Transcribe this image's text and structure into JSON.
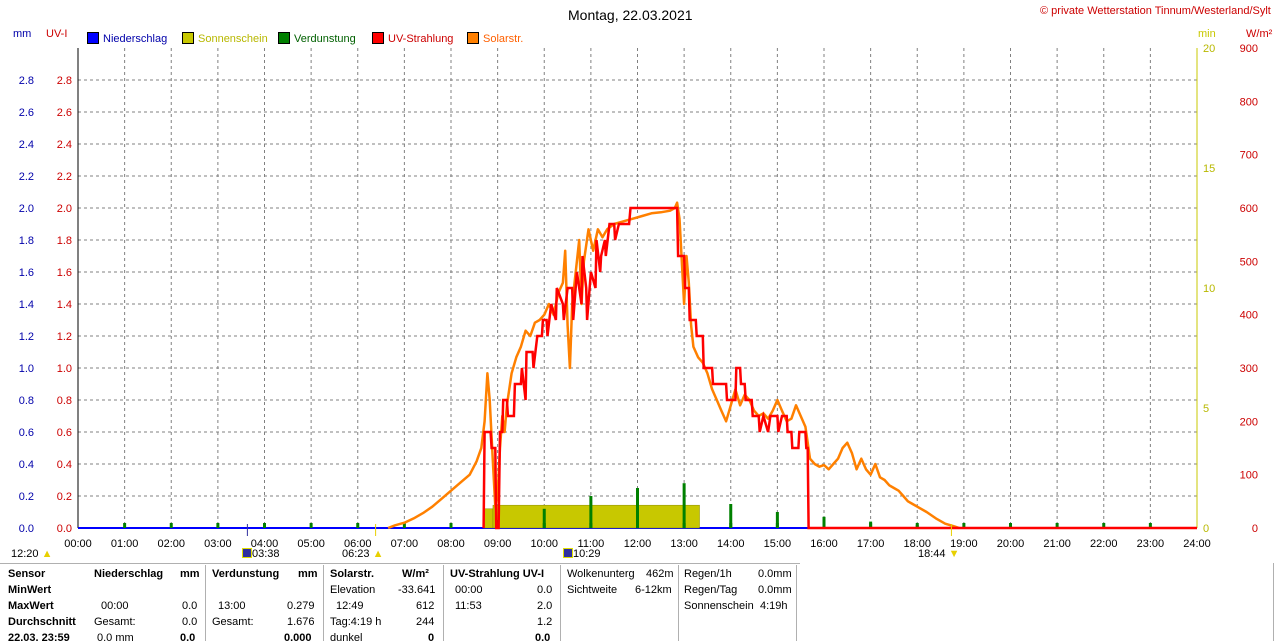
{
  "header": {
    "title": "Montag, 22.03.2021",
    "copyright": "© private Wetterstation Tinnum/Westerland/Sylt"
  },
  "units": {
    "left_mm": "mm",
    "left_uvi": "UV-I",
    "right_min": "min",
    "right_wm2": "W/m²"
  },
  "legend": [
    {
      "label": "Niederschlag",
      "color": "#0000ff"
    },
    {
      "label": "Sonnenschein",
      "color": "#c8c800"
    },
    {
      "label": "Verdunstung",
      "color": "#008000"
    },
    {
      "label": "UV-Strahlung",
      "color": "#ff0000"
    },
    {
      "label": "Solarstr.",
      "color": "#ff8000"
    }
  ],
  "colors": {
    "rain": "#0000ff",
    "sunshine": "#c8c800",
    "evaporation": "#008000",
    "uv": "#ff0000",
    "solar": "#ff8000",
    "grid": "#808080"
  },
  "markers": {
    "moonrise_left": "12:20",
    "moonset": "03:38",
    "sunrise": "06:23",
    "moon2": "10:29",
    "sunset": "18:44"
  },
  "chart_data": {
    "type": "line",
    "title": "Montag, 22.03.2021",
    "x_ticks": [
      "00:00",
      "01:00",
      "02:00",
      "03:00",
      "04:00",
      "05:00",
      "06:00",
      "07:00",
      "08:00",
      "09:00",
      "10:00",
      "11:00",
      "12:00",
      "13:00",
      "14:00",
      "15:00",
      "16:00",
      "17:00",
      "18:00",
      "19:00",
      "20:00",
      "21:00",
      "22:00",
      "23:00",
      "24:00"
    ],
    "xlim_hours": [
      0,
      24
    ],
    "y_left_mm_ticks": [
      "0.0",
      "0.2",
      "0.4",
      "0.6",
      "0.8",
      "1.0",
      "1.2",
      "1.4",
      "1.6",
      "1.8",
      "2.0",
      "2.2",
      "2.4",
      "2.6",
      "2.8"
    ],
    "y_left_uvi_ticks": [
      "0.0",
      "0.2",
      "0.4",
      "0.6",
      "0.8",
      "1.0",
      "1.2",
      "1.4",
      "1.6",
      "1.8",
      "2.0",
      "2.2",
      "2.4",
      "2.6",
      "2.8"
    ],
    "y_left_range": [
      0,
      3.0
    ],
    "y_right_min_ticks": [
      "0",
      "5",
      "10",
      "15",
      "20"
    ],
    "y_right_min_range": [
      0,
      20
    ],
    "y_right_wm2_ticks": [
      "0",
      "100",
      "200",
      "300",
      "400",
      "500",
      "600",
      "700",
      "800",
      "900"
    ],
    "y_right_wm2_range": [
      0,
      900
    ],
    "grid": true,
    "series": [
      {
        "name": "UV-Strahlung",
        "axis": "uvi",
        "points": [
          [
            8.7,
            0
          ],
          [
            8.72,
            0.6
          ],
          [
            8.85,
            0.6
          ],
          [
            8.87,
            0.5
          ],
          [
            8.95,
            0.5
          ],
          [
            8.97,
            0
          ],
          [
            9.02,
            0
          ],
          [
            9.05,
            0.6
          ],
          [
            9.1,
            0.6
          ],
          [
            9.12,
            0.8
          ],
          [
            9.2,
            0.8
          ],
          [
            9.22,
            0.7
          ],
          [
            9.35,
            0.7
          ],
          [
            9.37,
            0.9
          ],
          [
            9.5,
            0.9
          ],
          [
            9.52,
            1.0
          ],
          [
            9.6,
            0.8
          ],
          [
            9.62,
            1.1
          ],
          [
            9.75,
            1.1
          ],
          [
            9.77,
            1.0
          ],
          [
            9.85,
            1.2
          ],
          [
            9.95,
            1.2
          ],
          [
            9.97,
            1.3
          ],
          [
            10.05,
            1.3
          ],
          [
            10.07,
            1.2
          ],
          [
            10.15,
            1.4
          ],
          [
            10.25,
            1.3
          ],
          [
            10.27,
            1.5
          ],
          [
            10.4,
            1.4
          ],
          [
            10.42,
            1.3
          ],
          [
            10.5,
            1.5
          ],
          [
            10.6,
            1.5
          ],
          [
            10.62,
            1.3
          ],
          [
            10.7,
            1.6
          ],
          [
            10.8,
            1.4
          ],
          [
            10.82,
            1.7
          ],
          [
            10.9,
            1.5
          ],
          [
            10.92,
            1.3
          ],
          [
            11.0,
            1.6
          ],
          [
            11.1,
            1.5
          ],
          [
            11.12,
            1.8
          ],
          [
            11.2,
            1.6
          ],
          [
            11.22,
            1.7
          ],
          [
            11.3,
            1.8
          ],
          [
            11.32,
            1.7
          ],
          [
            11.4,
            1.9
          ],
          [
            11.5,
            1.9
          ],
          [
            11.52,
            1.8
          ],
          [
            11.6,
            1.9
          ],
          [
            11.8,
            1.9
          ],
          [
            11.82,
            1.9
          ],
          [
            11.85,
            2.0
          ],
          [
            12.85,
            2.0
          ],
          [
            12.87,
            1.7
          ],
          [
            13.0,
            1.7
          ],
          [
            13.02,
            1.5
          ],
          [
            13.1,
            1.5
          ],
          [
            13.12,
            1.3
          ],
          [
            13.25,
            1.3
          ],
          [
            13.27,
            1.2
          ],
          [
            13.4,
            1.2
          ],
          [
            13.42,
            1.0
          ],
          [
            13.6,
            1.0
          ],
          [
            13.62,
            0.9
          ],
          [
            13.9,
            0.9
          ],
          [
            13.92,
            0.8
          ],
          [
            14.1,
            0.8
          ],
          [
            14.12,
            1.0
          ],
          [
            14.2,
            1.0
          ],
          [
            14.22,
            0.9
          ],
          [
            14.3,
            0.9
          ],
          [
            14.32,
            0.8
          ],
          [
            14.45,
            0.8
          ],
          [
            14.47,
            0.7
          ],
          [
            14.6,
            0.7
          ],
          [
            14.62,
            0.6
          ],
          [
            14.7,
            0.7
          ],
          [
            14.8,
            0.6
          ],
          [
            14.85,
            0.7
          ],
          [
            15.0,
            0.7
          ],
          [
            15.02,
            0.6
          ],
          [
            15.1,
            0.7
          ],
          [
            15.2,
            0.7
          ],
          [
            15.22,
            0.6
          ],
          [
            15.3,
            0.6
          ],
          [
            15.32,
            0.5
          ],
          [
            15.45,
            0.5
          ],
          [
            15.47,
            0.6
          ],
          [
            15.6,
            0.6
          ],
          [
            15.62,
            0.5
          ],
          [
            15.65,
            0.5
          ],
          [
            15.67,
            0
          ],
          [
            24,
            0
          ]
        ]
      },
      {
        "name": "Solarstr.",
        "axis": "wm2",
        "points": [
          [
            6.65,
            0
          ],
          [
            6.8,
            5
          ],
          [
            7.0,
            10
          ],
          [
            7.2,
            18
          ],
          [
            7.4,
            28
          ],
          [
            7.6,
            40
          ],
          [
            7.8,
            55
          ],
          [
            8.0,
            70
          ],
          [
            8.2,
            85
          ],
          [
            8.4,
            100
          ],
          [
            8.55,
            125
          ],
          [
            8.65,
            150
          ],
          [
            8.72,
            200
          ],
          [
            8.78,
            290
          ],
          [
            8.83,
            240
          ],
          [
            8.9,
            120
          ],
          [
            8.95,
            40
          ],
          [
            9.0,
            60
          ],
          [
            9.05,
            150
          ],
          [
            9.1,
            210
          ],
          [
            9.15,
            180
          ],
          [
            9.2,
            230
          ],
          [
            9.3,
            290
          ],
          [
            9.4,
            320
          ],
          [
            9.5,
            340
          ],
          [
            9.6,
            370
          ],
          [
            9.7,
            360
          ],
          [
            9.8,
            385
          ],
          [
            9.9,
            390
          ],
          [
            10.0,
            400
          ],
          [
            10.1,
            420
          ],
          [
            10.2,
            400
          ],
          [
            10.3,
            440
          ],
          [
            10.4,
            460
          ],
          [
            10.45,
            520
          ],
          [
            10.5,
            380
          ],
          [
            10.55,
            300
          ],
          [
            10.6,
            420
          ],
          [
            10.7,
            500
          ],
          [
            10.75,
            540
          ],
          [
            10.8,
            420
          ],
          [
            10.85,
            500
          ],
          [
            10.95,
            560
          ],
          [
            11.05,
            520
          ],
          [
            11.15,
            560
          ],
          [
            11.25,
            545
          ],
          [
            11.35,
            560
          ],
          [
            11.5,
            570
          ],
          [
            11.7,
            575
          ],
          [
            11.9,
            580
          ],
          [
            12.1,
            585
          ],
          [
            12.3,
            590
          ],
          [
            12.5,
            592
          ],
          [
            12.7,
            595
          ],
          [
            12.8,
            600
          ],
          [
            12.85,
            610
          ],
          [
            12.9,
            580
          ],
          [
            12.95,
            500
          ],
          [
            13.0,
            420
          ],
          [
            13.05,
            510
          ],
          [
            13.1,
            460
          ],
          [
            13.15,
            380
          ],
          [
            13.2,
            340
          ],
          [
            13.3,
            320
          ],
          [
            13.4,
            310
          ],
          [
            13.5,
            290
          ],
          [
            13.6,
            260
          ],
          [
            13.7,
            240
          ],
          [
            13.8,
            220
          ],
          [
            13.9,
            200
          ],
          [
            14.0,
            230
          ],
          [
            14.1,
            260
          ],
          [
            14.2,
            230
          ],
          [
            14.3,
            250
          ],
          [
            14.4,
            240
          ],
          [
            14.5,
            220
          ],
          [
            14.6,
            210
          ],
          [
            14.7,
            215
          ],
          [
            14.8,
            205
          ],
          [
            14.9,
            220
          ],
          [
            15.0,
            240
          ],
          [
            15.1,
            220
          ],
          [
            15.2,
            200
          ],
          [
            15.3,
            205
          ],
          [
            15.4,
            230
          ],
          [
            15.5,
            210
          ],
          [
            15.6,
            190
          ],
          [
            15.7,
            130
          ],
          [
            15.8,
            120
          ],
          [
            15.9,
            115
          ],
          [
            16.0,
            118
          ],
          [
            16.1,
            110
          ],
          [
            16.2,
            120
          ],
          [
            16.3,
            130
          ],
          [
            16.4,
            150
          ],
          [
            16.5,
            160
          ],
          [
            16.6,
            140
          ],
          [
            16.7,
            110
          ],
          [
            16.8,
            130
          ],
          [
            16.9,
            110
          ],
          [
            17.0,
            100
          ],
          [
            17.1,
            120
          ],
          [
            17.2,
            95
          ],
          [
            17.3,
            90
          ],
          [
            17.4,
            80
          ],
          [
            17.5,
            75
          ],
          [
            17.6,
            70
          ],
          [
            17.7,
            60
          ],
          [
            17.8,
            50
          ],
          [
            17.9,
            45
          ],
          [
            18.0,
            40
          ],
          [
            18.2,
            30
          ],
          [
            18.4,
            18
          ],
          [
            18.6,
            8
          ],
          [
            18.8,
            3
          ],
          [
            18.9,
            0
          ]
        ]
      },
      {
        "name": "Sonnenschein",
        "axis": "min",
        "bars": [
          [
            8.7,
            8.9,
            0.8
          ],
          [
            8.9,
            13.33,
            0.95
          ]
        ]
      },
      {
        "name": "Verdunstung",
        "axis": "mm",
        "bars": [
          [
            9.0,
            0.05
          ],
          [
            10.0,
            0.12
          ],
          [
            11.0,
            0.2
          ],
          [
            12.0,
            0.25
          ],
          [
            13.0,
            0.28
          ],
          [
            14.0,
            0.15
          ],
          [
            15.0,
            0.1
          ],
          [
            16.0,
            0.07
          ],
          [
            17.0,
            0.04
          ],
          [
            18.0,
            0.02
          ]
        ]
      },
      {
        "name": "Niederschlag",
        "axis": "mm",
        "values": []
      }
    ]
  },
  "stats": {
    "row_labels": [
      "Sensor",
      "MinWert",
      "MaxWert",
      "Durchschnitt",
      "22.03. 23:59"
    ],
    "niederschlag": {
      "title": "Niederschlag",
      "unit": "mm",
      "max_time": "00:00",
      "max_val": "0.0",
      "gesamt_label": "Gesamt:",
      "gesamt_val": "0.0",
      "last_val": "0.0 mm",
      "last_bold": "0.0"
    },
    "verdunstung": {
      "title": "Verdunstung",
      "unit": "mm",
      "max_time": "13:00",
      "max_val": "0.279",
      "gesamt_label": "Gesamt:",
      "gesamt_val": "1.676",
      "last_bold": "0.000"
    },
    "solar": {
      "title": "Solarstr.",
      "unit": "W/m²",
      "elev_label": "Elevation",
      "elev_val": "-33.641",
      "max_time": "12:49",
      "max_val": "612",
      "tag_label": "Tag:4:19 h",
      "tag_val": "244",
      "dunkel_label": "dunkel",
      "last_bold": "0"
    },
    "uv": {
      "title": "UV-Strahlung UV-I",
      "min_time": "00:00",
      "min_val": "0.0",
      "max_time": "11:53",
      "max_val": "2.0",
      "avg_val": "1.2",
      "last_bold": "0.0"
    },
    "cloud": {
      "label1": "Wolkenunterg",
      "val1": "462m",
      "label2": "Sichtweite",
      "val2": "6-12km"
    },
    "rain": {
      "label1": "Regen/1h",
      "val1": "0.0mm",
      "label2": "Regen/Tag",
      "val2": "0.0mm",
      "label3": "Sonnenschein",
      "val3": "4:19h"
    }
  }
}
